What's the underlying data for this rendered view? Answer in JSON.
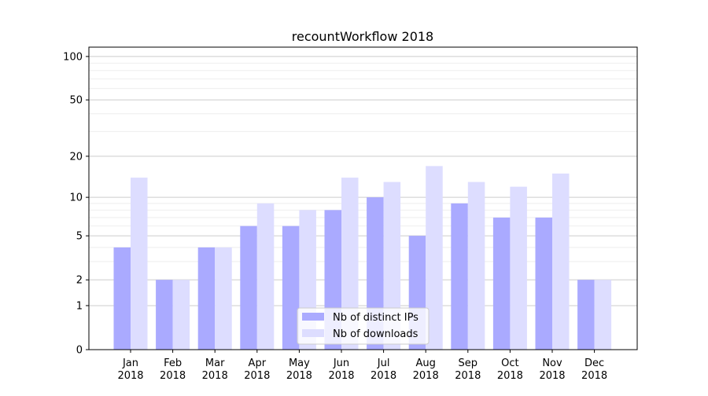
{
  "chart_data": {
    "type": "bar",
    "title": "recountWorkflow 2018",
    "xlabel": "",
    "ylabel": "",
    "yscale": "log10(1+y)",
    "ylim": [
      0,
      116
    ],
    "yticks": [
      0,
      1,
      2,
      5,
      10,
      20,
      50,
      100
    ],
    "grid": true,
    "legend_position": "bottom-center",
    "categories": [
      "Jan\n2018",
      "Feb\n2018",
      "Mar\n2018",
      "Apr\n2018",
      "May\n2018",
      "Jun\n2018",
      "Jul\n2018",
      "Aug\n2018",
      "Sep\n2018",
      "Oct\n2018",
      "Nov\n2018",
      "Dec\n2018"
    ],
    "series": [
      {
        "name": "Nb of distinct IPs",
        "color": "#aaaaff",
        "values": [
          4,
          2,
          4,
          6,
          6,
          8,
          10,
          5,
          9,
          7,
          7,
          2
        ]
      },
      {
        "name": "Nb of downloads",
        "color": "#ddddff",
        "values": [
          14,
          2,
          4,
          9,
          8,
          14,
          13,
          17,
          13,
          12,
          15,
          2
        ]
      }
    ]
  }
}
